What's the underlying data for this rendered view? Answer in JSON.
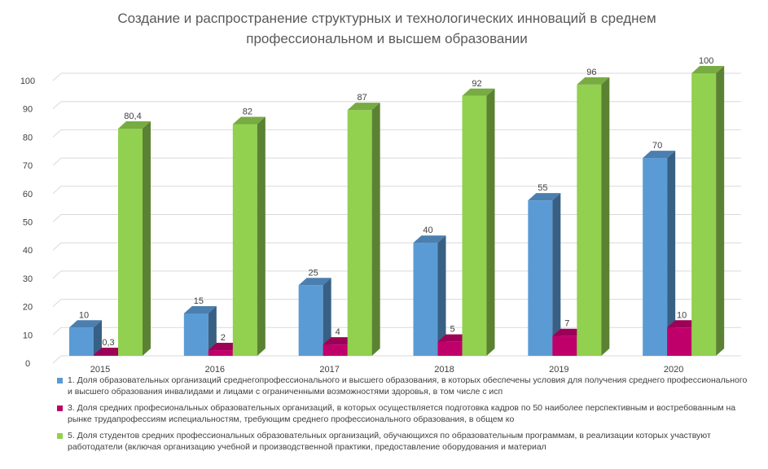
{
  "chart_data": {
    "type": "bar",
    "title": "Создание и распространение структурных и технологических инноваций в среднем профессиональном и высшем образовании",
    "categories": [
      "2015",
      "2016",
      "2017",
      "2018",
      "2019",
      "2020"
    ],
    "ylim": [
      0,
      100
    ],
    "yticks": [
      "0",
      "10",
      "20",
      "30",
      "40",
      "50",
      "60",
      "70",
      "80",
      "90",
      "100"
    ],
    "grid": true,
    "legend_position": "bottom",
    "series": [
      {
        "name": "1. Доля образовательных организаций среднегопрофессионального и высшего образования, в которых обеспечены условия для получения среднего профессионального и высшего образования инвалидами и лицами с ограниченными возможностями здоровья, в том числе с исп",
        "color": "#5b9bd5",
        "values": [
          10,
          15,
          25,
          40,
          55,
          70
        ],
        "labels": [
          "10",
          "15",
          "25",
          "40",
          "55",
          "70"
        ]
      },
      {
        "name": "3. Доля средних професиональных образовательных организаций, в которых осуществляется подготовка кадров по 50 наиболее перспективным и востребованным на рынке трудапрофессиям испециальностям, требующим среднего профессионального образования, в общем ко",
        "color": "#c0006a",
        "values": [
          0.3,
          2,
          4,
          5,
          7,
          10
        ],
        "labels": [
          "0,3",
          "2",
          "4",
          "5",
          "7",
          "10"
        ]
      },
      {
        "name": "5. Доля студентов средних профессиональных образовательных организаций, обучающихся по образовательным программам, в реализации которых участвуют работодатели (включая организацию учебной и производственной практики, предоставление оборудования и материал",
        "color": "#92d050",
        "values": [
          80.4,
          82,
          87,
          92,
          96,
          100
        ],
        "labels": [
          "80,4",
          "82",
          "87",
          "92",
          "96",
          "100"
        ]
      }
    ]
  }
}
